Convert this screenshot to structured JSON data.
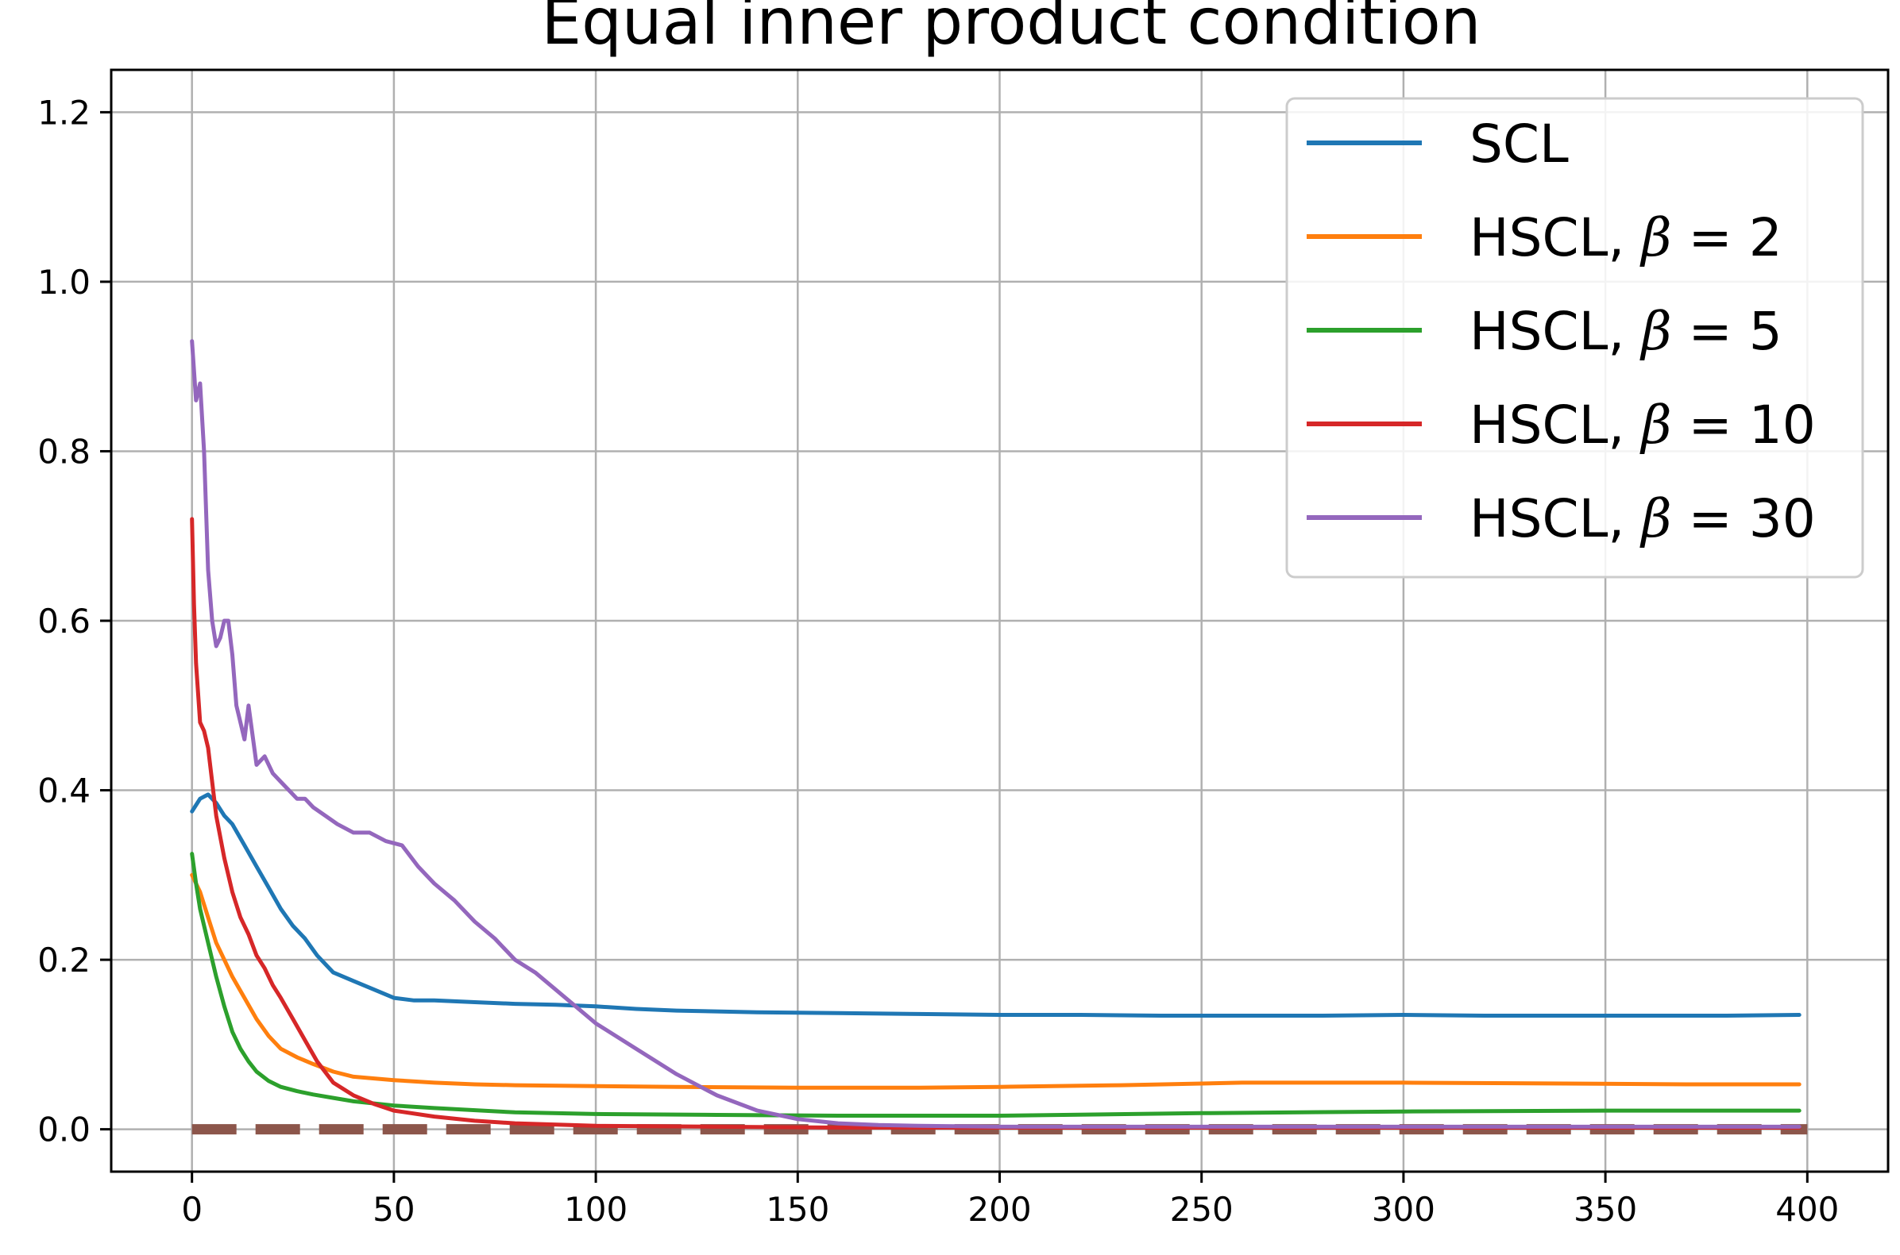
{
  "chart_data": {
    "type": "line",
    "title": "Equal inner product condition",
    "xlabel": "",
    "ylabel": "",
    "xlim": [
      -20,
      420
    ],
    "ylim": [
      -0.05,
      1.25
    ],
    "xticks": [
      0,
      50,
      100,
      150,
      200,
      250,
      300,
      350,
      400
    ],
    "xtick_labels": [
      "0",
      "50",
      "100",
      "150",
      "200",
      "250",
      "300",
      "350",
      "400"
    ],
    "yticks": [
      0.0,
      0.2,
      0.4,
      0.6,
      0.8,
      1.0,
      1.2
    ],
    "ytick_labels": [
      "0.0",
      "0.2",
      "0.4",
      "0.6",
      "0.8",
      "1.0",
      "1.2"
    ],
    "grid": true,
    "legend_position": "top-right",
    "series": [
      {
        "name": "SCL",
        "color": "#1f77b4",
        "x": [
          0,
          2,
          4,
          6,
          8,
          10,
          13,
          16,
          19,
          22,
          25,
          28,
          31,
          35,
          40,
          45,
          50,
          55,
          60,
          70,
          80,
          90,
          100,
          110,
          120,
          140,
          160,
          180,
          200,
          220,
          240,
          260,
          280,
          300,
          320,
          340,
          360,
          380,
          398
        ],
        "y": [
          0.375,
          0.39,
          0.395,
          0.385,
          0.37,
          0.36,
          0.335,
          0.31,
          0.285,
          0.26,
          0.24,
          0.225,
          0.205,
          0.185,
          0.175,
          0.165,
          0.155,
          0.152,
          0.152,
          0.15,
          0.148,
          0.147,
          0.145,
          0.142,
          0.14,
          0.138,
          0.137,
          0.136,
          0.135,
          0.135,
          0.134,
          0.134,
          0.134,
          0.135,
          0.134,
          0.134,
          0.134,
          0.134,
          0.135
        ]
      },
      {
        "name": "HSCL, β = 2",
        "color": "#ff7f0e",
        "x": [
          0,
          2,
          4,
          6,
          8,
          10,
          13,
          16,
          19,
          22,
          26,
          30,
          35,
          40,
          50,
          60,
          70,
          80,
          100,
          120,
          150,
          180,
          200,
          230,
          260,
          300,
          340,
          370,
          398
        ],
        "y": [
          0.3,
          0.28,
          0.25,
          0.22,
          0.2,
          0.18,
          0.155,
          0.13,
          0.11,
          0.095,
          0.085,
          0.077,
          0.068,
          0.062,
          0.058,
          0.055,
          0.053,
          0.052,
          0.051,
          0.05,
          0.049,
          0.049,
          0.05,
          0.052,
          0.055,
          0.055,
          0.054,
          0.053,
          0.053
        ]
      },
      {
        "name": "HSCL, β = 5",
        "color": "#2ca02c",
        "x": [
          0,
          1,
          2,
          4,
          6,
          8,
          10,
          12,
          14,
          16,
          19,
          22,
          26,
          30,
          35,
          40,
          50,
          60,
          80,
          100,
          130,
          160,
          200,
          250,
          300,
          350,
          398
        ],
        "y": [
          0.325,
          0.29,
          0.26,
          0.22,
          0.18,
          0.145,
          0.115,
          0.095,
          0.08,
          0.068,
          0.057,
          0.05,
          0.045,
          0.041,
          0.037,
          0.033,
          0.028,
          0.025,
          0.02,
          0.018,
          0.017,
          0.016,
          0.016,
          0.019,
          0.021,
          0.022,
          0.022
        ]
      },
      {
        "name": "HSCL, β = 10",
        "color": "#d62728",
        "x": [
          0,
          0.5,
          1,
          2,
          3,
          4,
          5,
          6,
          8,
          10,
          12,
          14,
          16,
          18,
          20,
          22,
          25,
          28,
          31,
          35,
          40,
          45,
          50,
          60,
          70,
          80,
          100,
          130,
          160,
          200,
          250,
          300,
          350,
          398
        ],
        "y": [
          0.72,
          0.62,
          0.55,
          0.48,
          0.47,
          0.45,
          0.41,
          0.37,
          0.32,
          0.28,
          0.25,
          0.23,
          0.205,
          0.19,
          0.17,
          0.155,
          0.13,
          0.105,
          0.08,
          0.055,
          0.04,
          0.03,
          0.022,
          0.015,
          0.01,
          0.007,
          0.004,
          0.003,
          0.002,
          0.002,
          0.002,
          0.002,
          0.002,
          0.002
        ]
      },
      {
        "name": "HSCL, β = 30",
        "color": "#9467bd",
        "x": [
          0,
          1,
          2,
          3,
          4,
          5,
          6,
          7,
          8,
          9,
          10,
          11,
          12,
          13,
          14,
          16,
          18,
          20,
          22,
          24,
          26,
          28,
          30,
          33,
          36,
          40,
          44,
          48,
          52,
          56,
          60,
          65,
          70,
          75,
          80,
          85,
          90,
          95,
          100,
          110,
          120,
          130,
          140,
          150,
          160,
          170,
          180,
          200,
          250,
          300,
          350,
          398
        ],
        "y": [
          0.93,
          0.86,
          0.88,
          0.8,
          0.66,
          0.6,
          0.57,
          0.58,
          0.6,
          0.6,
          0.56,
          0.5,
          0.48,
          0.46,
          0.5,
          0.43,
          0.44,
          0.42,
          0.41,
          0.4,
          0.39,
          0.39,
          0.38,
          0.37,
          0.36,
          0.35,
          0.35,
          0.34,
          0.335,
          0.31,
          0.29,
          0.27,
          0.245,
          0.225,
          0.2,
          0.185,
          0.165,
          0.145,
          0.125,
          0.095,
          0.065,
          0.04,
          0.022,
          0.012,
          0.007,
          0.005,
          0.004,
          0.003,
          0.003,
          0.003,
          0.003,
          0.003
        ]
      },
      {
        "name": "",
        "color": "#8c564b",
        "dashed": true,
        "x": [
          0,
          400
        ],
        "y": [
          0.0,
          0.0
        ]
      }
    ]
  },
  "legend": {
    "entries": [
      {
        "prefix": "SCL",
        "beta": ""
      },
      {
        "prefix": "HSCL, ",
        "beta": "2"
      },
      {
        "prefix": "HSCL, ",
        "beta": "5"
      },
      {
        "prefix": "HSCL, ",
        "beta": "10"
      },
      {
        "prefix": "HSCL, ",
        "beta": "30"
      }
    ],
    "beta_symbol": "β",
    "equals": " = "
  }
}
